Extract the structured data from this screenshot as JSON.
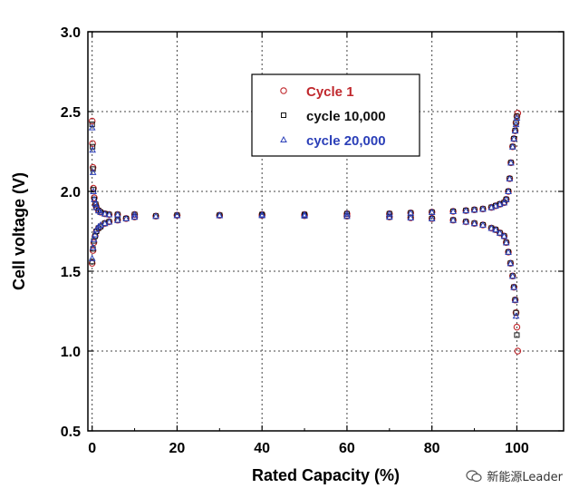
{
  "chart_data": {
    "type": "scatter",
    "xlabel": "Rated Capacity (%)",
    "ylabel": "Cell voltage (V)",
    "xlim": [
      -1,
      111
    ],
    "ylim": [
      0.5,
      3.0
    ],
    "xticks": [
      0,
      20,
      40,
      60,
      80,
      100
    ],
    "yticks": [
      0.5,
      1.0,
      1.5,
      2.0,
      2.5,
      3.0
    ],
    "ytick_labels": [
      "0.5",
      "1.0",
      "1.5",
      "2.0",
      "2.5",
      "3.0"
    ],
    "grid": true,
    "legend_position": "top-center",
    "series": [
      {
        "name": "Cycle 1",
        "color": "#c0282d",
        "marker": "circle",
        "charge": {
          "x": [
            0,
            0.2,
            0.4,
            0.7,
            1,
            1.5,
            2,
            3,
            4,
            6,
            8,
            10,
            15,
            20,
            30,
            40,
            50,
            60,
            70,
            75,
            80,
            85,
            88,
            90,
            92,
            94,
            95,
            96,
            97,
            97.5,
            98,
            98.3,
            98.6,
            99,
            99.3,
            99.6,
            99.8,
            100,
            100.2
          ],
          "y": [
            1.55,
            1.63,
            1.68,
            1.72,
            1.75,
            1.77,
            1.78,
            1.8,
            1.81,
            1.82,
            1.83,
            1.84,
            1.845,
            1.85,
            1.85,
            1.855,
            1.855,
            1.86,
            1.86,
            1.865,
            1.87,
            1.875,
            1.88,
            1.885,
            1.89,
            1.9,
            1.91,
            1.92,
            1.93,
            1.95,
            2.0,
            2.08,
            2.18,
            2.28,
            2.33,
            2.38,
            2.43,
            2.47,
            2.49
          ]
        },
        "discharge": {
          "x": [
            0,
            0.1,
            0.2,
            0.3,
            0.5,
            0.8,
            1,
            1.5,
            2,
            3,
            4,
            6,
            10,
            20,
            30,
            40,
            50,
            60,
            70,
            75,
            80,
            85,
            88,
            90,
            92,
            94,
            95,
            96,
            97,
            97.5,
            98,
            98.5,
            99,
            99.3,
            99.6,
            99.8,
            100,
            100.2
          ],
          "y": [
            2.44,
            2.3,
            2.15,
            2.02,
            1.96,
            1.92,
            1.9,
            1.88,
            1.87,
            1.86,
            1.855,
            1.855,
            1.855,
            1.85,
            1.85,
            1.85,
            1.848,
            1.845,
            1.84,
            1.835,
            1.83,
            1.82,
            1.81,
            1.8,
            1.79,
            1.77,
            1.76,
            1.74,
            1.72,
            1.68,
            1.62,
            1.55,
            1.47,
            1.4,
            1.32,
            1.24,
            1.15,
            1.0
          ]
        }
      },
      {
        "name": "cycle 10,000",
        "color": "#111111",
        "marker": "square",
        "charge": {
          "x": [
            0,
            0.2,
            0.4,
            0.7,
            1,
            1.5,
            2,
            3,
            4,
            6,
            8,
            10,
            15,
            20,
            30,
            40,
            50,
            60,
            70,
            75,
            80,
            85,
            88,
            90,
            92,
            94,
            95,
            96,
            97,
            97.5,
            98,
            98.3,
            98.6,
            99,
            99.3,
            99.6,
            99.8,
            100
          ],
          "y": [
            1.56,
            1.64,
            1.69,
            1.72,
            1.75,
            1.77,
            1.78,
            1.8,
            1.81,
            1.82,
            1.83,
            1.84,
            1.845,
            1.85,
            1.85,
            1.855,
            1.855,
            1.86,
            1.86,
            1.865,
            1.87,
            1.875,
            1.88,
            1.885,
            1.89,
            1.9,
            1.91,
            1.92,
            1.93,
            1.95,
            2.0,
            2.08,
            2.18,
            2.28,
            2.33,
            2.38,
            2.43,
            2.47
          ]
        },
        "discharge": {
          "x": [
            0,
            0.1,
            0.2,
            0.3,
            0.5,
            0.8,
            1,
            1.5,
            2,
            3,
            4,
            6,
            10,
            20,
            30,
            40,
            50,
            60,
            70,
            75,
            80,
            85,
            88,
            90,
            92,
            94,
            95,
            96,
            97,
            97.5,
            98,
            98.5,
            99,
            99.3,
            99.6,
            99.8,
            100
          ],
          "y": [
            2.42,
            2.28,
            2.14,
            2.01,
            1.95,
            1.92,
            1.9,
            1.88,
            1.87,
            1.86,
            1.855,
            1.855,
            1.855,
            1.85,
            1.85,
            1.85,
            1.848,
            1.845,
            1.84,
            1.835,
            1.83,
            1.82,
            1.81,
            1.8,
            1.79,
            1.77,
            1.76,
            1.74,
            1.72,
            1.68,
            1.62,
            1.55,
            1.47,
            1.4,
            1.32,
            1.24,
            1.1
          ]
        }
      },
      {
        "name": "cycle 20,000",
        "color": "#2b3fb8",
        "marker": "triangle",
        "charge": {
          "x": [
            0,
            0.2,
            0.4,
            0.7,
            1,
            1.5,
            2,
            3,
            4,
            6,
            8,
            10,
            15,
            20,
            30,
            40,
            50,
            60,
            70,
            75,
            80,
            85,
            88,
            90,
            92,
            94,
            95,
            96,
            97,
            97.5,
            98,
            98.3,
            98.6,
            99,
            99.3,
            99.6,
            99.8,
            100
          ],
          "y": [
            1.58,
            1.65,
            1.7,
            1.73,
            1.76,
            1.78,
            1.79,
            1.8,
            1.81,
            1.82,
            1.83,
            1.84,
            1.845,
            1.85,
            1.85,
            1.855,
            1.855,
            1.86,
            1.86,
            1.865,
            1.87,
            1.875,
            1.88,
            1.885,
            1.89,
            1.9,
            1.91,
            1.92,
            1.93,
            1.95,
            2.0,
            2.08,
            2.18,
            2.28,
            2.33,
            2.38,
            2.42,
            2.46
          ]
        },
        "discharge": {
          "x": [
            0,
            0.1,
            0.2,
            0.3,
            0.5,
            0.8,
            1,
            1.5,
            2,
            3,
            4,
            6,
            10,
            20,
            30,
            40,
            50,
            60,
            70,
            75,
            80,
            85,
            88,
            90,
            92,
            94,
            95,
            96,
            97,
            97.5,
            98,
            98.5,
            99,
            99.3,
            99.6,
            99.8
          ],
          "y": [
            2.4,
            2.26,
            2.12,
            2.0,
            1.95,
            1.92,
            1.9,
            1.88,
            1.87,
            1.86,
            1.855,
            1.855,
            1.855,
            1.85,
            1.85,
            1.85,
            1.848,
            1.845,
            1.84,
            1.835,
            1.83,
            1.82,
            1.81,
            1.8,
            1.79,
            1.77,
            1.76,
            1.74,
            1.72,
            1.68,
            1.62,
            1.55,
            1.47,
            1.4,
            1.32,
            1.22
          ]
        }
      }
    ]
  },
  "watermark": {
    "text": "新能源Leader",
    "icon": "wechat-icon"
  }
}
